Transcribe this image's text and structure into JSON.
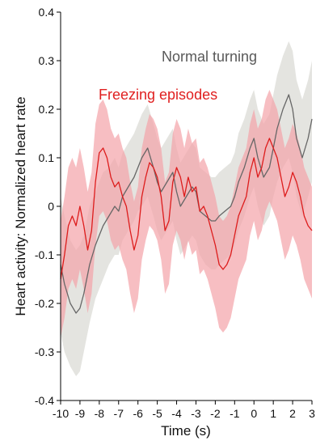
{
  "chart_data": {
    "type": "line",
    "title": "",
    "xlabel": "Time (s)",
    "ylabel": "Heart activity: Normalized heart rate",
    "xlim": [
      -10,
      3
    ],
    "ylim": [
      -0.4,
      0.4
    ],
    "xticks": [
      -10,
      -9,
      -8,
      -7,
      -6,
      -5,
      -4,
      -3,
      -2,
      -1,
      0,
      1,
      2,
      3
    ],
    "yticks": [
      -0.4,
      -0.3,
      -0.2,
      -0.1,
      0,
      0.1,
      0.2,
      0.3,
      0.4
    ],
    "ytick_labels": [
      "-0.4",
      "-0.3",
      "-0.2",
      "-0.1",
      "0",
      "0.1",
      "0.2",
      "0.3",
      "0.4"
    ],
    "grid": false,
    "legend": "none; series names printed directly on the plot",
    "series": [
      {
        "name": "Normal turning",
        "color": "#666666",
        "band_color": "#d9d8d3",
        "x": [
          -10,
          -9.8,
          -9.5,
          -9.2,
          -9,
          -8.8,
          -8.5,
          -8.2,
          -8,
          -7.8,
          -7.5,
          -7.2,
          -7,
          -6.8,
          -6.5,
          -6.2,
          -6,
          -5.8,
          -5.5,
          -5.2,
          -5,
          -4.8,
          -4.5,
          -4.2,
          -4,
          -3.8,
          -3.5,
          -3.2,
          -3,
          -2.8,
          -2.5,
          -2.2,
          -2,
          -1.8,
          -1.5,
          -1.2,
          -1,
          -0.8,
          -0.5,
          -0.2,
          0,
          0.2,
          0.5,
          0.8,
          1,
          1.2,
          1.5,
          1.8,
          2,
          2.2,
          2.5,
          2.8,
          3
        ],
        "y": [
          -0.12,
          -0.16,
          -0.2,
          -0.22,
          -0.21,
          -0.18,
          -0.12,
          -0.08,
          -0.06,
          -0.04,
          -0.02,
          0.0,
          -0.01,
          0.02,
          0.04,
          0.06,
          0.08,
          0.1,
          0.12,
          0.08,
          0.05,
          0.03,
          0.05,
          0.07,
          0.03,
          0.0,
          0.02,
          0.04,
          0.03,
          -0.01,
          -0.02,
          -0.03,
          -0.03,
          -0.02,
          -0.01,
          0.0,
          0.02,
          0.05,
          0.08,
          0.12,
          0.14,
          0.1,
          0.06,
          0.08,
          0.12,
          0.16,
          0.2,
          0.23,
          0.2,
          0.14,
          0.1,
          0.14,
          0.18
        ],
        "lower": [
          -0.26,
          -0.3,
          -0.33,
          -0.35,
          -0.34,
          -0.3,
          -0.24,
          -0.19,
          -0.17,
          -0.15,
          -0.12,
          -0.1,
          -0.1,
          -0.07,
          -0.05,
          -0.03,
          -0.01,
          0.0,
          0.02,
          -0.02,
          -0.05,
          -0.07,
          -0.05,
          -0.03,
          -0.07,
          -0.1,
          -0.08,
          -0.06,
          -0.07,
          -0.1,
          -0.12,
          -0.13,
          -0.13,
          -0.12,
          -0.11,
          -0.1,
          -0.08,
          -0.05,
          -0.02,
          0.02,
          0.04,
          0.0,
          -0.04,
          -0.02,
          0.02,
          0.05,
          0.08,
          0.1,
          0.07,
          0.02,
          -0.02,
          0.02,
          0.05
        ],
        "upper": [
          0.02,
          -0.02,
          -0.07,
          -0.09,
          -0.08,
          -0.06,
          0.0,
          0.03,
          0.05,
          0.07,
          0.08,
          0.1,
          0.08,
          0.11,
          0.13,
          0.15,
          0.17,
          0.19,
          0.21,
          0.17,
          0.14,
          0.12,
          0.14,
          0.16,
          0.12,
          0.09,
          0.11,
          0.13,
          0.12,
          0.08,
          0.07,
          0.06,
          0.06,
          0.07,
          0.08,
          0.09,
          0.11,
          0.15,
          0.18,
          0.22,
          0.24,
          0.2,
          0.17,
          0.19,
          0.23,
          0.27,
          0.31,
          0.34,
          0.32,
          0.26,
          0.22,
          0.26,
          0.3
        ]
      },
      {
        "name": "Freezing episodes",
        "color": "#dd1c1c",
        "band_color": "#f4a3a8",
        "x": [
          -10,
          -9.8,
          -9.6,
          -9.4,
          -9.2,
          -9,
          -8.8,
          -8.6,
          -8.4,
          -8.2,
          -8,
          -7.8,
          -7.6,
          -7.4,
          -7.2,
          -7,
          -6.8,
          -6.6,
          -6.4,
          -6.2,
          -6,
          -5.8,
          -5.6,
          -5.4,
          -5.2,
          -5,
          -4.8,
          -4.6,
          -4.4,
          -4.2,
          -4,
          -3.8,
          -3.6,
          -3.4,
          -3.2,
          -3,
          -2.8,
          -2.6,
          -2.4,
          -2.2,
          -2,
          -1.8,
          -1.6,
          -1.4,
          -1.2,
          -1,
          -0.8,
          -0.6,
          -0.4,
          -0.2,
          0,
          0.2,
          0.4,
          0.6,
          0.8,
          1,
          1.2,
          1.4,
          1.6,
          1.8,
          2,
          2.2,
          2.4,
          2.6,
          2.8,
          3
        ],
        "y": [
          -0.15,
          -0.1,
          -0.04,
          -0.02,
          -0.04,
          0.0,
          -0.04,
          -0.09,
          -0.05,
          0.05,
          0.11,
          0.12,
          0.1,
          0.06,
          0.04,
          0.05,
          0.02,
          0.0,
          -0.05,
          -0.09,
          -0.06,
          0.02,
          0.06,
          0.09,
          0.08,
          0.06,
          0.02,
          -0.05,
          -0.03,
          0.05,
          0.08,
          0.06,
          0.02,
          0.06,
          0.03,
          0.04,
          -0.01,
          0.0,
          -0.02,
          -0.05,
          -0.08,
          -0.12,
          -0.13,
          -0.12,
          -0.1,
          -0.06,
          -0.02,
          0.0,
          0.02,
          0.07,
          0.1,
          0.06,
          0.08,
          0.12,
          0.14,
          0.12,
          0.1,
          0.06,
          0.02,
          0.04,
          0.07,
          0.05,
          0.02,
          -0.02,
          -0.04,
          -0.05
        ],
        "lower": [
          -0.27,
          -0.23,
          -0.17,
          -0.15,
          -0.17,
          -0.13,
          -0.17,
          -0.22,
          -0.18,
          -0.08,
          -0.02,
          -0.01,
          -0.03,
          -0.07,
          -0.09,
          -0.08,
          -0.11,
          -0.13,
          -0.18,
          -0.22,
          -0.19,
          -0.11,
          -0.07,
          -0.04,
          -0.05,
          -0.07,
          -0.11,
          -0.18,
          -0.16,
          -0.08,
          -0.05,
          -0.07,
          -0.11,
          -0.07,
          -0.1,
          -0.09,
          -0.14,
          -0.13,
          -0.15,
          -0.18,
          -0.21,
          -0.25,
          -0.26,
          -0.25,
          -0.23,
          -0.19,
          -0.15,
          -0.13,
          -0.11,
          -0.06,
          -0.03,
          -0.07,
          -0.05,
          -0.01,
          0.01,
          -0.01,
          -0.03,
          -0.07,
          -0.11,
          -0.09,
          -0.06,
          -0.08,
          -0.11,
          -0.15,
          -0.17,
          -0.19
        ],
        "upper": [
          -0.03,
          0.02,
          0.08,
          0.1,
          0.08,
          0.12,
          0.08,
          0.03,
          0.07,
          0.17,
          0.21,
          0.22,
          0.2,
          0.16,
          0.14,
          0.15,
          0.12,
          0.1,
          0.05,
          0.01,
          0.04,
          0.12,
          0.16,
          0.19,
          0.18,
          0.16,
          0.12,
          0.05,
          0.07,
          0.15,
          0.18,
          0.16,
          0.12,
          0.16,
          0.13,
          0.14,
          0.09,
          0.1,
          0.08,
          0.05,
          0.02,
          -0.02,
          -0.03,
          -0.02,
          0.0,
          0.04,
          0.08,
          0.1,
          0.12,
          0.17,
          0.2,
          0.16,
          0.18,
          0.22,
          0.24,
          0.22,
          0.2,
          0.16,
          0.12,
          0.14,
          0.17,
          0.15,
          0.12,
          0.08,
          0.06,
          0.04
        ]
      }
    ]
  }
}
